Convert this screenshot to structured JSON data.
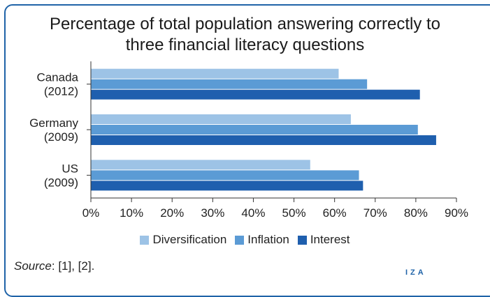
{
  "chart_data": {
    "type": "bar",
    "orientation": "horizontal",
    "title": "Percentage of total population answering correctly to\nthree financial literacy questions",
    "categories": [
      {
        "line1": "Canada",
        "line2": "(2012)"
      },
      {
        "line1": "Germany",
        "line2": "(2009)"
      },
      {
        "line1": "US",
        "line2": "(2009)"
      }
    ],
    "series": [
      {
        "name": "Diversification",
        "color": "#9dc3e6",
        "values": [
          61,
          64,
          54
        ]
      },
      {
        "name": "Inflation",
        "color": "#5b9bd5",
        "values": [
          68,
          80.5,
          66
        ]
      },
      {
        "name": "Interest",
        "color": "#1f5fae",
        "values": [
          81,
          85,
          67
        ]
      }
    ],
    "xlim": [
      0,
      90
    ],
    "xticks": [
      "0%",
      "10%",
      "20%",
      "30%",
      "40%",
      "50%",
      "60%",
      "70%",
      "80%",
      "90%"
    ],
    "xlabel": "",
    "ylabel": "",
    "grid": false,
    "legend_position": "bottom"
  },
  "source": {
    "label": "Source",
    "text": ": [1], [2]."
  },
  "logo": "IZA"
}
